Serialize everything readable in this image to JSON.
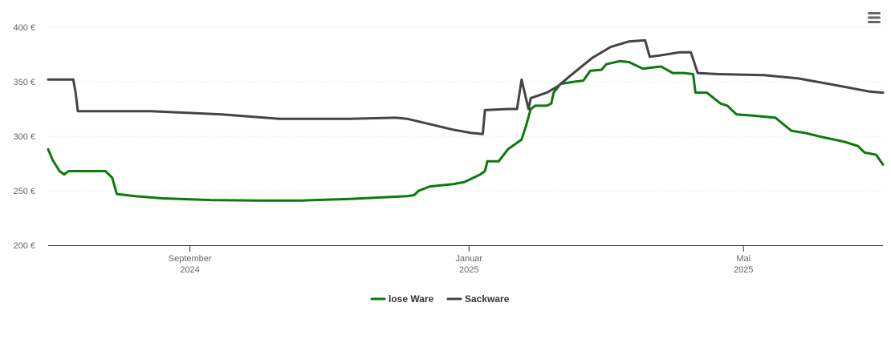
{
  "menu": {
    "icon": "hamburger-menu-icon"
  },
  "chart_data": {
    "type": "line",
    "title": "",
    "xlabel": "",
    "ylabel": "",
    "ylim": [
      200,
      400
    ],
    "y_ticks": [
      {
        "value": 200,
        "label": "200 €"
      },
      {
        "value": 250,
        "label": "250 €"
      },
      {
        "value": 300,
        "label": "300 €"
      },
      {
        "value": 350,
        "label": "350 €"
      },
      {
        "value": 400,
        "label": "400 €"
      }
    ],
    "xlim": [
      "2024-07-01",
      "2025-07-01"
    ],
    "x_ticks": [
      {
        "date": "2024-09-01",
        "label": "September",
        "sublabel": "2024"
      },
      {
        "date": "2025-01-01",
        "label": "Januar",
        "sublabel": "2025"
      },
      {
        "date": "2025-05-01",
        "label": "Mai",
        "sublabel": "2025"
      }
    ],
    "grid": true,
    "legend": "bottom-center",
    "series": [
      {
        "name": "lose Ware",
        "color": "#0a7a0a",
        "points": [
          [
            "2024-07-01",
            288
          ],
          [
            "2024-07-03",
            278
          ],
          [
            "2024-07-06",
            268
          ],
          [
            "2024-07-08",
            265
          ],
          [
            "2024-07-10",
            268
          ],
          [
            "2024-07-20",
            268
          ],
          [
            "2024-07-26",
            268
          ],
          [
            "2024-07-29",
            262
          ],
          [
            "2024-07-31",
            247
          ],
          [
            "2024-08-08",
            245
          ],
          [
            "2024-08-20",
            243
          ],
          [
            "2024-09-10",
            241.5
          ],
          [
            "2024-10-01",
            241
          ],
          [
            "2024-10-20",
            241
          ],
          [
            "2024-11-10",
            242.5
          ],
          [
            "2024-12-05",
            245
          ],
          [
            "2024-12-08",
            246
          ],
          [
            "2024-12-10",
            250
          ],
          [
            "2024-12-15",
            254
          ],
          [
            "2024-12-25",
            256
          ],
          [
            "2024-12-30",
            258
          ],
          [
            "2025-01-01",
            260
          ],
          [
            "2025-01-06",
            265
          ],
          [
            "2025-01-08",
            268
          ],
          [
            "2025-01-09",
            277
          ],
          [
            "2025-01-14",
            277
          ],
          [
            "2025-01-18",
            288
          ],
          [
            "2025-01-24",
            297
          ],
          [
            "2025-01-26",
            310
          ],
          [
            "2025-01-28",
            325
          ],
          [
            "2025-01-30",
            328
          ],
          [
            "2025-02-04",
            328
          ],
          [
            "2025-02-06",
            330
          ],
          [
            "2025-02-07",
            340
          ],
          [
            "2025-02-10",
            348
          ],
          [
            "2025-02-16",
            350
          ],
          [
            "2025-02-20",
            351
          ],
          [
            "2025-02-23",
            360
          ],
          [
            "2025-02-28",
            361
          ],
          [
            "2025-03-02",
            366
          ],
          [
            "2025-03-08",
            369
          ],
          [
            "2025-03-12",
            368
          ],
          [
            "2025-03-18",
            362
          ],
          [
            "2025-03-22",
            363
          ],
          [
            "2025-03-26",
            364
          ],
          [
            "2025-03-31",
            358
          ],
          [
            "2025-04-05",
            358
          ],
          [
            "2025-04-09",
            357
          ],
          [
            "2025-04-10",
            340
          ],
          [
            "2025-04-15",
            340
          ],
          [
            "2025-04-21",
            330
          ],
          [
            "2025-04-24",
            328
          ],
          [
            "2025-04-28",
            320
          ],
          [
            "2025-05-05",
            319
          ],
          [
            "2025-05-15",
            317
          ],
          [
            "2025-05-19",
            310
          ],
          [
            "2025-05-22",
            305
          ],
          [
            "2025-05-28",
            303
          ],
          [
            "2025-06-05",
            299
          ],
          [
            "2025-06-14",
            295
          ],
          [
            "2025-06-20",
            291
          ],
          [
            "2025-06-23",
            285
          ],
          [
            "2025-06-28",
            283
          ],
          [
            "2025-07-01",
            274
          ]
        ]
      },
      {
        "name": "Sackware",
        "color": "#444444",
        "points": [
          [
            "2024-07-01",
            352
          ],
          [
            "2024-07-12",
            352
          ],
          [
            "2024-07-13",
            340
          ],
          [
            "2024-07-14",
            323
          ],
          [
            "2024-07-20",
            323
          ],
          [
            "2024-08-15",
            323
          ],
          [
            "2024-09-15",
            320
          ],
          [
            "2024-10-10",
            316
          ],
          [
            "2024-11-10",
            316
          ],
          [
            "2024-11-30",
            317
          ],
          [
            "2024-12-05",
            316
          ],
          [
            "2024-12-25",
            306
          ],
          [
            "2025-01-02",
            303
          ],
          [
            "2025-01-07",
            302
          ],
          [
            "2025-01-08",
            324
          ],
          [
            "2025-01-18",
            325
          ],
          [
            "2025-01-22",
            325
          ],
          [
            "2025-01-24",
            352
          ],
          [
            "2025-01-27",
            325
          ],
          [
            "2025-01-28",
            335
          ],
          [
            "2025-02-04",
            340
          ],
          [
            "2025-02-09",
            346
          ],
          [
            "2025-02-14",
            355
          ],
          [
            "2025-02-24",
            372
          ],
          [
            "2025-03-04",
            382
          ],
          [
            "2025-03-12",
            387
          ],
          [
            "2025-03-19",
            388
          ],
          [
            "2025-03-21",
            373
          ],
          [
            "2025-03-25",
            374
          ],
          [
            "2025-04-03",
            377
          ],
          [
            "2025-04-08",
            377
          ],
          [
            "2025-04-11",
            358
          ],
          [
            "2025-04-20",
            357
          ],
          [
            "2025-05-10",
            356
          ],
          [
            "2025-05-25",
            353
          ],
          [
            "2025-06-10",
            347
          ],
          [
            "2025-06-25",
            341
          ],
          [
            "2025-07-01",
            340
          ]
        ]
      }
    ]
  }
}
